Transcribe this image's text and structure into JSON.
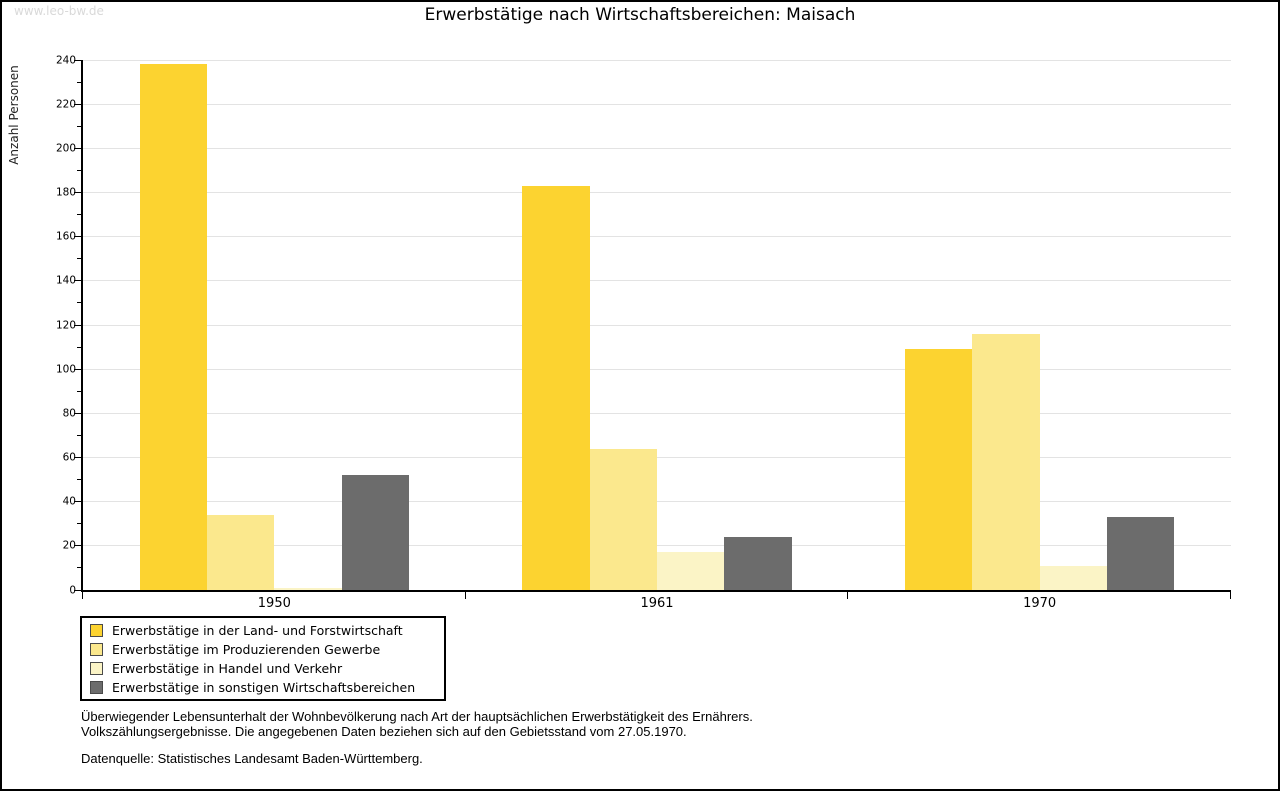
{
  "watermark": "www.leo-bw.de",
  "title": "Erwerbstätige nach Wirtschaftsbereichen: Maisach",
  "chart_data": {
    "type": "bar",
    "title": "Erwerbstätige nach Wirtschaftsbereichen: Maisach",
    "xlabel": "",
    "ylabel": "Anzahl Personen",
    "categories": [
      "1950",
      "1961",
      "1970"
    ],
    "series": [
      {
        "name": "Erwerbstätige in der Land- und Forstwirtschaft",
        "color": "#FCD330",
        "values": [
          238,
          183,
          109
        ]
      },
      {
        "name": "Erwerbstätige im Produzierenden Gewerbe",
        "color": "#FBE88D",
        "values": [
          34,
          64,
          116
        ]
      },
      {
        "name": "Erwerbstätige in Handel und Verkehr",
        "color": "#FBF4C6",
        "values": [
          1,
          17,
          11
        ]
      },
      {
        "name": "Erwerbstätige in sonstigen Wirtschaftsbereichen",
        "color": "#6C6C6C",
        "values": [
          52,
          24,
          33
        ]
      }
    ],
    "ylim": [
      0,
      240
    ],
    "ytick_step": 20,
    "minor_tick_step": 10,
    "yticks": [
      0,
      20,
      40,
      60,
      80,
      100,
      120,
      140,
      160,
      180,
      200,
      220,
      240
    ],
    "grid": true,
    "legend_position": "bottom-left"
  },
  "footnotes": [
    "Überwiegender Lebensunterhalt der Wohnbevölkerung nach Art der hauptsächlichen Erwerbstätigkeit des Ernährers.",
    "Volkszählungsergebnisse. Die angegebenen Daten beziehen sich auf den Gebietsstand vom 27.05.1970."
  ],
  "source": "Datenquelle: Statistisches Landesamt Baden-Württemberg."
}
